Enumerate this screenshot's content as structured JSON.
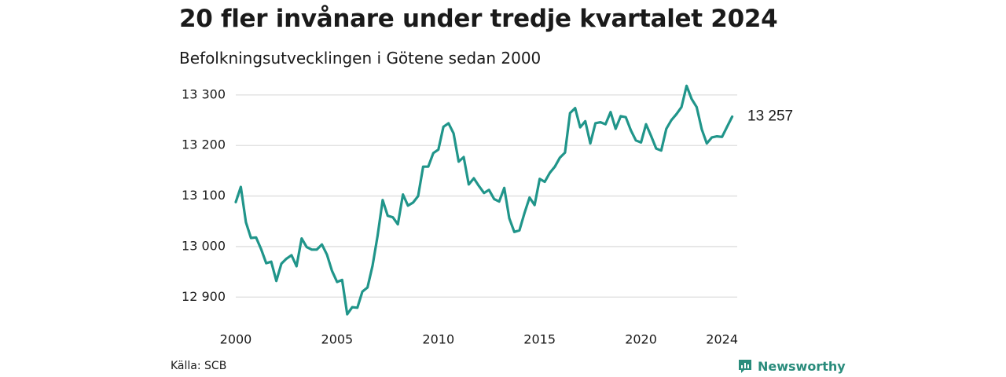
{
  "header": {
    "title": "20 fler invånare under tredje kvartalet 2024",
    "subtitle": "Befolkningsutvecklingen i Götene sedan 2000"
  },
  "footer": {
    "source": "Källa: SCB",
    "brand": "Newsworthy",
    "brand_icon": "bar-chart-badge-icon"
  },
  "colors": {
    "line": "#20958a",
    "grid": "#dedede",
    "brand": "#2a8c7c"
  },
  "chart_data": {
    "type": "line",
    "title": "20 fler invånare under tredje kvartalet 2024",
    "subtitle": "Befolkningsutvecklingen i Götene sedan 2000",
    "xlabel": "",
    "ylabel": "",
    "grid": "horizontal",
    "legend": "none",
    "xlim": [
      2000,
      2024.75
    ],
    "ylim": [
      12860,
      13320
    ],
    "x_ticks": [
      {
        "value": 2000,
        "label": "2000"
      },
      {
        "value": 2005,
        "label": "2005"
      },
      {
        "value": 2010,
        "label": "2010"
      },
      {
        "value": 2015,
        "label": "2015"
      },
      {
        "value": 2020,
        "label": "2020"
      },
      {
        "value": 2024,
        "label": "2024"
      }
    ],
    "y_ticks": [
      {
        "value": 12900,
        "label": "12 900"
      },
      {
        "value": 13000,
        "label": "13 000"
      },
      {
        "value": 13100,
        "label": "13 100"
      },
      {
        "value": 13200,
        "label": "13 200"
      },
      {
        "value": 13300,
        "label": "13 300"
      }
    ],
    "end_label": "13 257",
    "series": [
      {
        "x_start": 2000,
        "x_step": 0.25,
        "values": [
          13088,
          13118,
          13048,
          13017,
          13018,
          12995,
          12967,
          12970,
          12932,
          12966,
          12976,
          12983,
          12961,
          13016,
          12999,
          12994,
          12994,
          13004,
          12984,
          12952,
          12930,
          12934,
          12866,
          12880,
          12879,
          12911,
          12919,
          12962,
          13021,
          13092,
          13061,
          13058,
          13044,
          13103,
          13081,
          13087,
          13100,
          13158,
          13158,
          13185,
          13192,
          13237,
          13244,
          13224,
          13168,
          13177,
          13123,
          13135,
          13120,
          13106,
          13112,
          13094,
          13089,
          13116,
          13056,
          13029,
          13032,
          13066,
          13097,
          13082,
          13134,
          13128,
          13146,
          13158,
          13176,
          13186,
          13264,
          13274,
          13236,
          13248,
          13204,
          13244,
          13246,
          13242,
          13266,
          13233,
          13258,
          13256,
          13230,
          13210,
          13206,
          13242,
          13219,
          13194,
          13190,
          13233,
          13250,
          13262,
          13276,
          13318,
          13292,
          13276,
          13232,
          13204,
          13216,
          13218,
          13217,
          13237,
          13257
        ]
      }
    ]
  }
}
